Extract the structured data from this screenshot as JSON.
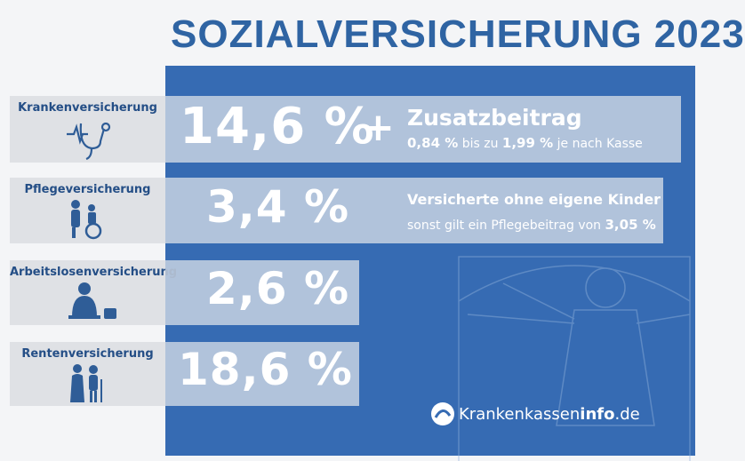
{
  "title": "SOZIALVERSICHERUNG 2023",
  "rows": [
    {
      "label": "Krankenversicherung",
      "value": "14,6 %",
      "icon": "stethoscope-icon"
    },
    {
      "label": "Pflegeversicherung",
      "value": "3,4 %",
      "icon": "wheelchair-icon"
    },
    {
      "label": "Arbeitslosenversicherung",
      "value": "2,6 %",
      "icon": "unemployed-person-icon"
    },
    {
      "label": "Rentenversicherung",
      "value": "18,6 %",
      "icon": "elderly-couple-icon"
    }
  ],
  "plus": "+",
  "zusatz": {
    "heading": "Zusatzbeitrag",
    "from": "0,84 %",
    "mid": "bis zu",
    "to": "1,99 %",
    "end": "je nach Kasse"
  },
  "pflege_note": {
    "heading": "Versicherte ohne eigene Kinder",
    "text": "sonst gilt ein Pflegebeitrag von",
    "value": "3,05 %"
  },
  "logo": {
    "main": "Krankenkassen",
    "bold": "info",
    "tld": ".de"
  },
  "colors": {
    "title": "#2f64a3",
    "panel": "#366bb3",
    "label_bg": "#dfe1e5",
    "label_text": "#244e86"
  }
}
